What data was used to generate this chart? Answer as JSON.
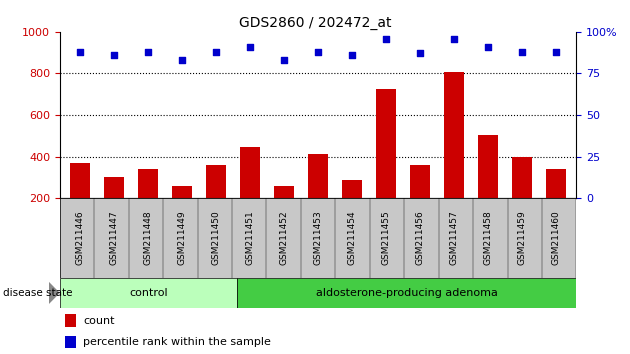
{
  "title": "GDS2860 / 202472_at",
  "samples": [
    "GSM211446",
    "GSM211447",
    "GSM211448",
    "GSM211449",
    "GSM211450",
    "GSM211451",
    "GSM211452",
    "GSM211453",
    "GSM211454",
    "GSM211455",
    "GSM211456",
    "GSM211457",
    "GSM211458",
    "GSM211459",
    "GSM211460"
  ],
  "counts": [
    370,
    300,
    340,
    258,
    358,
    448,
    260,
    415,
    290,
    725,
    358,
    805,
    502,
    400,
    342
  ],
  "percentiles": [
    88,
    86,
    88,
    83,
    88,
    91,
    83,
    88,
    86,
    96,
    87,
    96,
    91,
    88,
    88
  ],
  "control_count": 5,
  "ylim_left": [
    200,
    1000
  ],
  "ylim_right": [
    0,
    100
  ],
  "yticks_left": [
    200,
    400,
    600,
    800,
    1000
  ],
  "yticks_right": [
    0,
    25,
    50,
    75,
    100
  ],
  "bar_color": "#cc0000",
  "dot_color": "#0000cc",
  "control_bg": "#bbffbb",
  "adenoma_bg": "#44cc44",
  "label_bg": "#c8c8c8",
  "grid_color": "#000000",
  "control_label": "control",
  "adenoma_label": "aldosterone-producing adenoma",
  "legend_count": "count",
  "legend_pct": "percentile rank within the sample"
}
